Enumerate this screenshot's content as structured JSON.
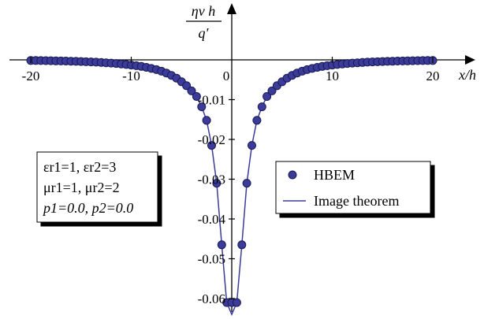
{
  "chart_data": {
    "type": "scatter",
    "x_axis": {
      "label": "x/h",
      "range": [
        -20,
        20
      ],
      "ticks": [
        {
          "value": -20,
          "label": "-20"
        },
        {
          "value": -10,
          "label": "-10"
        },
        {
          "value": 0,
          "label": "0"
        },
        {
          "value": 10,
          "label": "10"
        },
        {
          "value": 20,
          "label": "20"
        }
      ]
    },
    "y_axis": {
      "label_numerator": "ηv h",
      "label_denominator": "q′",
      "range": [
        -0.062,
        0
      ],
      "ticks": [
        {
          "value": -0.01,
          "label": "-0.01"
        },
        {
          "value": -0.02,
          "label": "-0.02"
        },
        {
          "value": -0.03,
          "label": "-0.03"
        },
        {
          "value": -0.04,
          "label": "-0.04"
        },
        {
          "value": -0.05,
          "label": "-0.05"
        },
        {
          "value": -0.06,
          "label": "-0.06"
        }
      ]
    },
    "grid": false,
    "legend": {
      "placement": "right",
      "entries": [
        {
          "label": "HBEM",
          "kind": "marker"
        },
        {
          "label": "Image theorem",
          "kind": "line"
        }
      ]
    },
    "parameters_box": {
      "placement": "left",
      "lines": [
        "εr1=1, εr2=3",
        "μr1=1, μr2=2",
        "p1=0.0, p2=0.0"
      ]
    },
    "series": [
      {
        "name": "HBEM",
        "kind": "marker",
        "color": "#3b3b9a",
        "x": [
          -20,
          -19.5,
          -19,
          -18.5,
          -18,
          -17.5,
          -17,
          -16.5,
          -16,
          -15.5,
          -15,
          -14.5,
          -14,
          -13.5,
          -13,
          -12.5,
          -12,
          -11.5,
          -11,
          -10.5,
          -10,
          -9.5,
          -9,
          -8.5,
          -8,
          -7.5,
          -7,
          -6.5,
          -6,
          -5.5,
          -5,
          -4.5,
          -4,
          -3.5,
          -3,
          -2.5,
          -2,
          -1.5,
          -1,
          -0.5,
          0,
          0.5,
          1,
          1.5,
          2,
          2.5,
          3,
          3.5,
          4,
          4.5,
          5,
          5.5,
          6,
          6.5,
          7,
          7.5,
          8,
          8.5,
          9,
          9.5,
          10,
          10.5,
          11,
          11.5,
          12,
          12.5,
          13,
          13.5,
          14,
          14.5,
          15,
          15.5,
          16,
          16.5,
          17,
          17.5,
          18,
          18.5,
          19,
          19.5,
          20
        ],
        "y": [
          -0.00015,
          -0.00016,
          -0.00018,
          -0.0002,
          -0.00022,
          -0.00025,
          -0.00027,
          -0.0003,
          -0.00034,
          -0.00038,
          -0.00042,
          -0.00047,
          -0.00052,
          -0.00058,
          -0.00065,
          -0.00073,
          -0.00082,
          -0.00092,
          -0.00103,
          -0.00116,
          -0.0013,
          -0.00146,
          -0.00165,
          -0.00188,
          -0.00215,
          -0.00246,
          -0.00285,
          -0.0033,
          -0.0039,
          -0.0046,
          -0.0055,
          -0.0065,
          -0.0078,
          -0.0092,
          -0.0118,
          -0.0152,
          -0.0215,
          -0.031,
          -0.0465,
          -0.061,
          -0.061,
          -0.061,
          -0.0465,
          -0.031,
          -0.0215,
          -0.0152,
          -0.0118,
          -0.0092,
          -0.0078,
          -0.0065,
          -0.0055,
          -0.0046,
          -0.0039,
          -0.0033,
          -0.00285,
          -0.00246,
          -0.00215,
          -0.00188,
          -0.00165,
          -0.00146,
          -0.0013,
          -0.00116,
          -0.00103,
          -0.00092,
          -0.00082,
          -0.00073,
          -0.00065,
          -0.00058,
          -0.00052,
          -0.00047,
          -0.00042,
          -0.00038,
          -0.00034,
          -0.0003,
          -0.00027,
          -0.00025,
          -0.00022,
          -0.0002,
          -0.00018,
          -0.00016,
          -0.00015
        ]
      },
      {
        "name": "Image theorem",
        "kind": "line",
        "color": "#3b3b9a",
        "x": [
          -20,
          -18,
          -16,
          -14,
          -12,
          -10,
          -9,
          -8,
          -7,
          -6,
          -5,
          -4,
          -3.5,
          -3,
          -2.5,
          -2,
          -1.5,
          -1,
          -0.5,
          0,
          0.5,
          1,
          1.5,
          2,
          2.5,
          3,
          3.5,
          4,
          5,
          6,
          7,
          8,
          9,
          10,
          12,
          14,
          16,
          18,
          20
        ],
        "y": [
          -0.00015,
          -0.00022,
          -0.00034,
          -0.00052,
          -0.00082,
          -0.0013,
          -0.00165,
          -0.00215,
          -0.00285,
          -0.0039,
          -0.0055,
          -0.0078,
          -0.0092,
          -0.0118,
          -0.0152,
          -0.0215,
          -0.031,
          -0.0465,
          -0.061,
          -0.064,
          -0.061,
          -0.0465,
          -0.031,
          -0.0215,
          -0.0152,
          -0.0118,
          -0.0092,
          -0.0078,
          -0.0055,
          -0.0039,
          -0.00285,
          -0.00215,
          -0.00165,
          -0.0013,
          -0.00082,
          -0.00052,
          -0.00034,
          -0.00022,
          -0.00015
        ]
      }
    ]
  }
}
